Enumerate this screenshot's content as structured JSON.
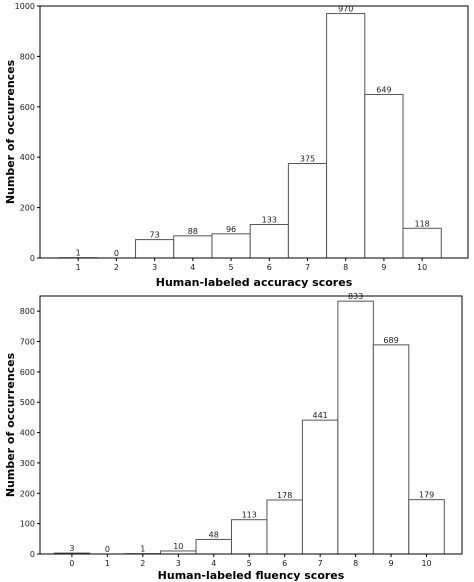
{
  "chart_data": [
    {
      "type": "bar",
      "xlabel": "Human-labeled accuracy scores",
      "ylabel": "Number of occurrences",
      "categories": [
        "1",
        "2",
        "3",
        "4",
        "5",
        "6",
        "7",
        "8",
        "9",
        "10"
      ],
      "values": [
        1,
        0,
        73,
        88,
        96,
        133,
        375,
        970,
        649,
        118
      ],
      "labels": [
        "1",
        "0",
        "73",
        "88",
        "96",
        "133",
        "375",
        "970",
        "649",
        "118"
      ],
      "y_ticks": [
        0,
        200,
        400,
        600,
        800,
        1000
      ],
      "ylim": [
        0,
        1000
      ],
      "grid": false,
      "bar_fill": "#ffffff",
      "bar_stroke": "#555555"
    },
    {
      "type": "bar",
      "xlabel": "Human-labeled fluency scores",
      "ylabel": "Number of occurrences",
      "categories": [
        "0",
        "1",
        "2",
        "3",
        "4",
        "5",
        "6",
        "7",
        "8",
        "9",
        "10"
      ],
      "values": [
        3,
        0,
        1,
        10,
        48,
        113,
        178,
        441,
        833,
        689,
        179
      ],
      "labels": [
        "3",
        "0",
        "1",
        "10",
        "48",
        "113",
        "178",
        "441",
        "833",
        "689",
        "179"
      ],
      "y_ticks": [
        0,
        100,
        200,
        300,
        400,
        500,
        600,
        700,
        800
      ],
      "ylim": [
        0,
        850
      ],
      "grid": false,
      "bar_fill": "#ffffff",
      "bar_stroke": "#555555"
    }
  ]
}
